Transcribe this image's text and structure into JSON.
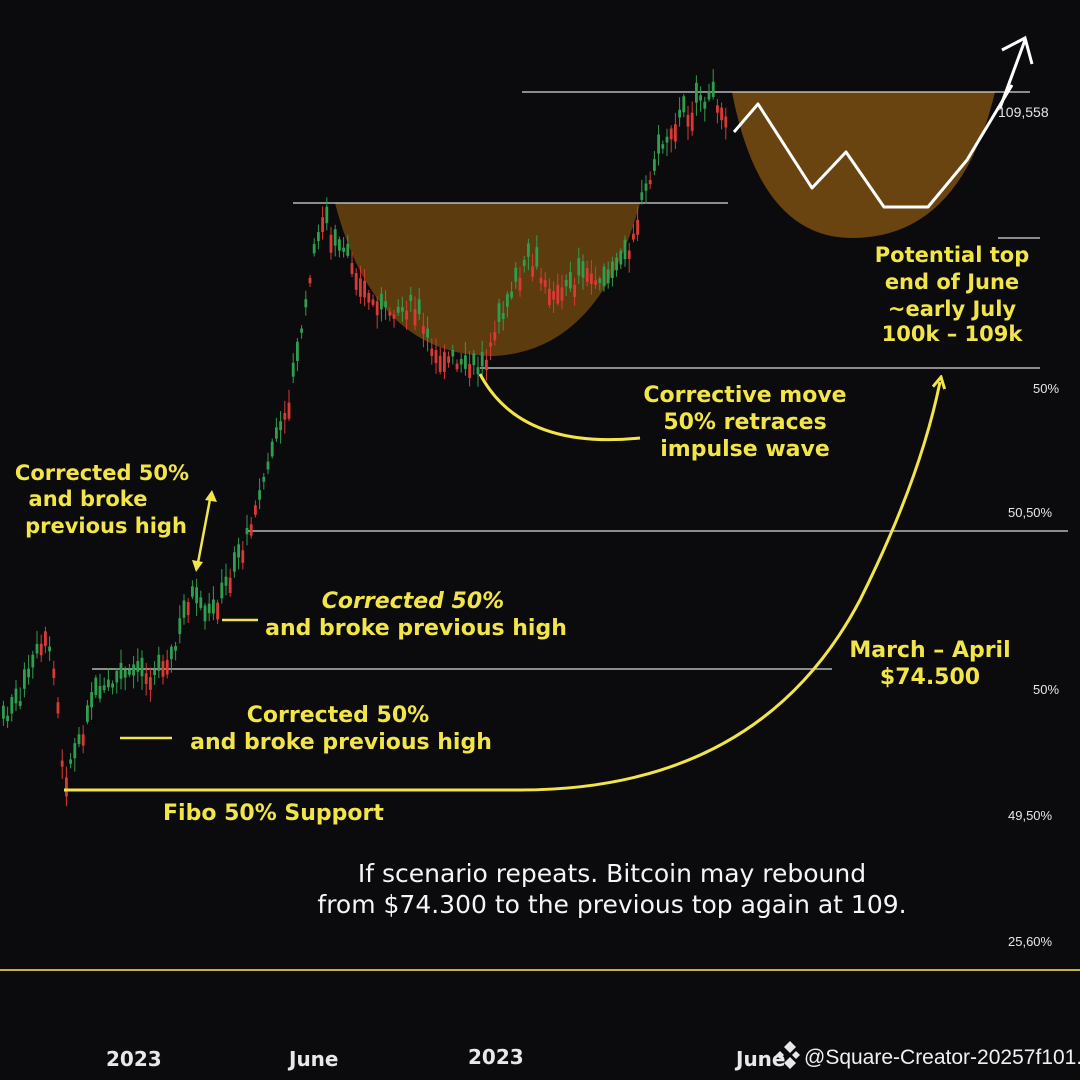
{
  "chart_data": {
    "type": "candlestick",
    "y_level_labels": [
      "109,558",
      "50%",
      "50,50%",
      "50%",
      "49,50%",
      "25,60%"
    ],
    "x_tick_labels": [
      "2023",
      "June",
      "2023",
      "June"
    ],
    "annotations": {
      "potential_top": [
        "Potential top",
        "end of June",
        "~early July",
        "100k – 109k"
      ],
      "corrective_move": [
        "Corrective move",
        "50% retraces",
        "impulse wave"
      ],
      "corrected_left": [
        "Corrected 50%",
        "and broke",
        "previous high"
      ],
      "corrected_mid": [
        "Corrected 50%",
        "and broke previous high"
      ],
      "corrected_low": [
        "Corrected 50%",
        "and broke previous  high"
      ],
      "march_april": [
        "March – April",
        "$74.500"
      ],
      "fibo_support": "Fibo 50% Support",
      "scenario": [
        "If scenario repeats. Bitcoin may rebound",
        "from $74.300 to the previous top again at 109."
      ]
    },
    "watermark": "@Square-Creator-20257f101..."
  },
  "colors": {
    "background": "#0b0b0d",
    "bull": "#2f9e4f",
    "bear": "#d83a34",
    "annotation": "#f2e54a",
    "cup_fill": "#7a4e12",
    "level_line": "#d9d9d9",
    "baseline": "#c9b23a"
  }
}
